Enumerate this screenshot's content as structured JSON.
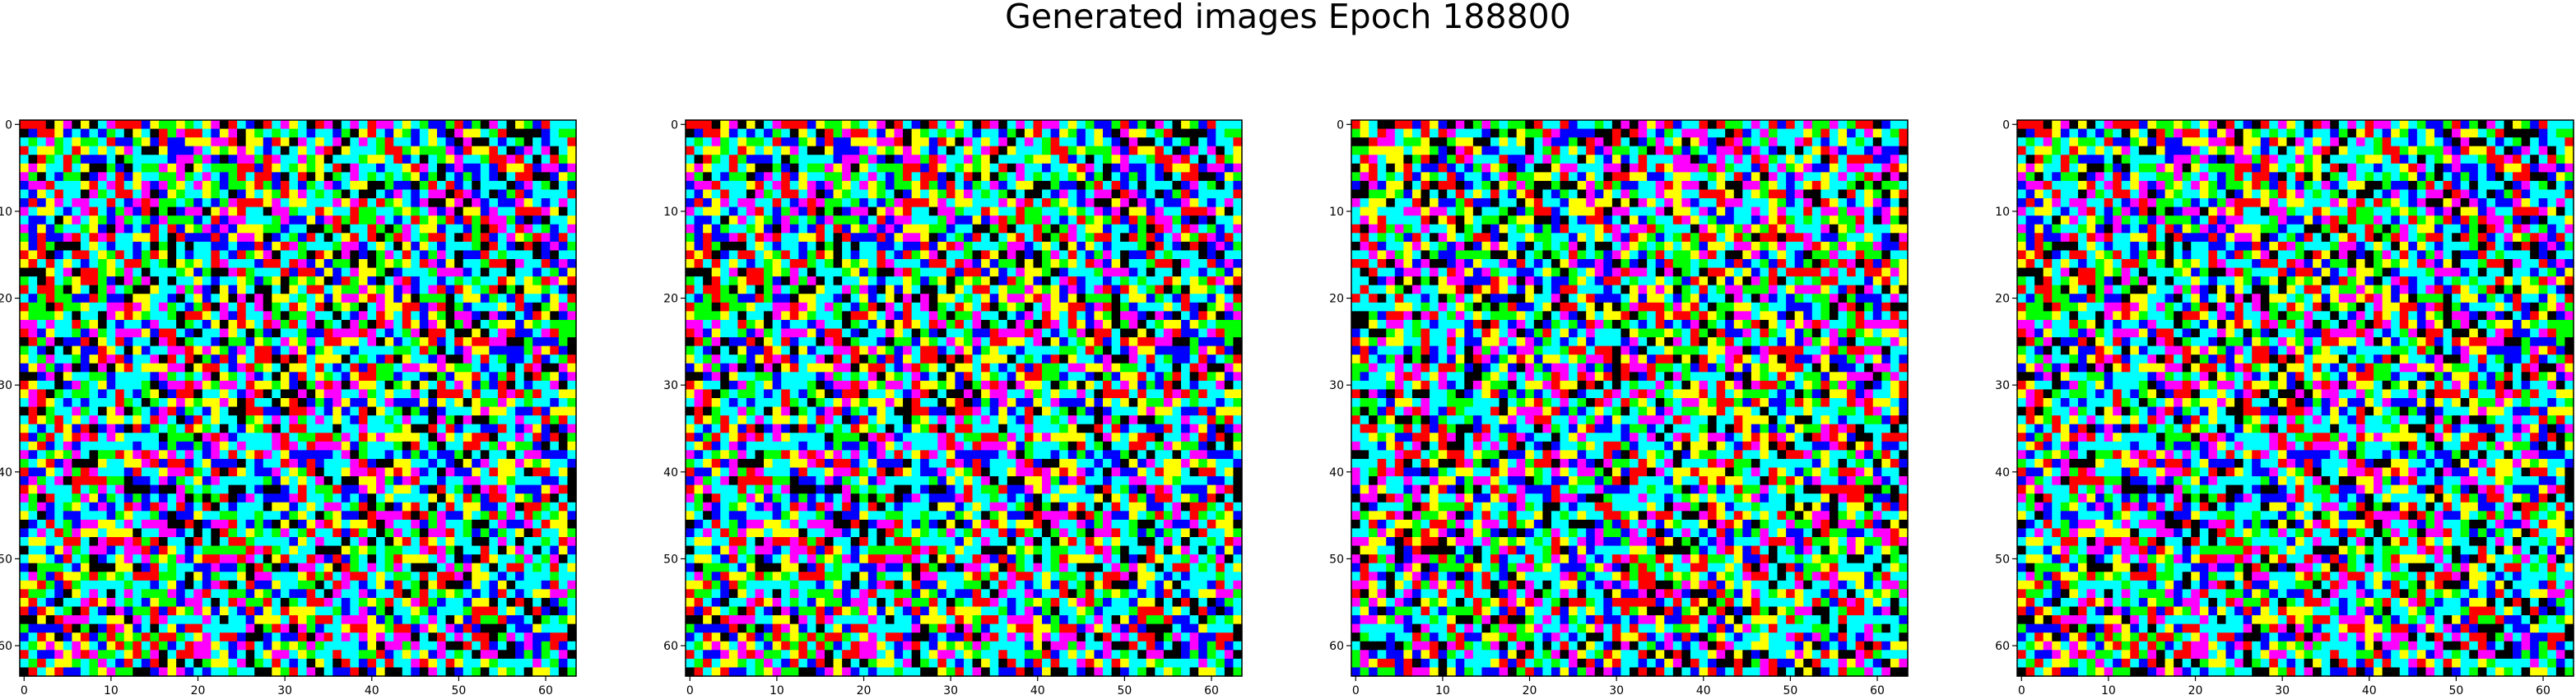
{
  "figure": {
    "title": "Generated images Epoch 188800"
  },
  "chart_data": [
    {
      "type": "heatmap",
      "title": "",
      "xlabel": "",
      "ylabel": "",
      "xlim": [
        -0.5,
        63.5
      ],
      "ylim": [
        63.5,
        -0.5
      ],
      "xticks": [
        "0",
        "10",
        "20",
        "30",
        "40",
        "50",
        "60"
      ],
      "yticks": [
        "0",
        "10",
        "20",
        "30",
        "40",
        "50",
        "60"
      ],
      "grid": false,
      "shape": [
        64,
        64,
        3
      ],
      "pattern_seed": 11
    },
    {
      "type": "heatmap",
      "title": "",
      "xlabel": "",
      "ylabel": "",
      "xlim": [
        -0.5,
        63.5
      ],
      "ylim": [
        63.5,
        -0.5
      ],
      "xticks": [
        "0",
        "10",
        "20",
        "30",
        "40",
        "50",
        "60"
      ],
      "yticks": [
        "0",
        "10",
        "20",
        "30",
        "40",
        "50",
        "60"
      ],
      "grid": false,
      "shape": [
        64,
        64,
        3
      ],
      "pattern_seed": 11
    },
    {
      "type": "heatmap",
      "title": "",
      "xlabel": "",
      "ylabel": "",
      "xlim": [
        -0.5,
        63.5
      ],
      "ylim": [
        63.5,
        -0.5
      ],
      "xticks": [
        "0",
        "10",
        "20",
        "30",
        "40",
        "50",
        "60"
      ],
      "yticks": [
        "0",
        "10",
        "20",
        "30",
        "40",
        "50",
        "60"
      ],
      "grid": false,
      "shape": [
        64,
        64,
        3
      ],
      "pattern_seed": 37
    },
    {
      "type": "heatmap",
      "title": "",
      "xlabel": "",
      "ylabel": "",
      "xlim": [
        -0.5,
        63.5
      ],
      "ylim": [
        63.5,
        -0.5
      ],
      "xticks": [
        "0",
        "10",
        "20",
        "30",
        "40",
        "50",
        "60"
      ],
      "yticks": [
        "0",
        "10",
        "20",
        "30",
        "40",
        "50",
        "60"
      ],
      "grid": false,
      "shape": [
        64,
        64,
        3
      ],
      "pattern_seed": 11
    }
  ],
  "palette": [
    "#000000",
    "#ff0000",
    "#00ff00",
    "#0000ff",
    "#ffff00",
    "#ff00ff",
    "#00ffff",
    "#ffffff"
  ]
}
